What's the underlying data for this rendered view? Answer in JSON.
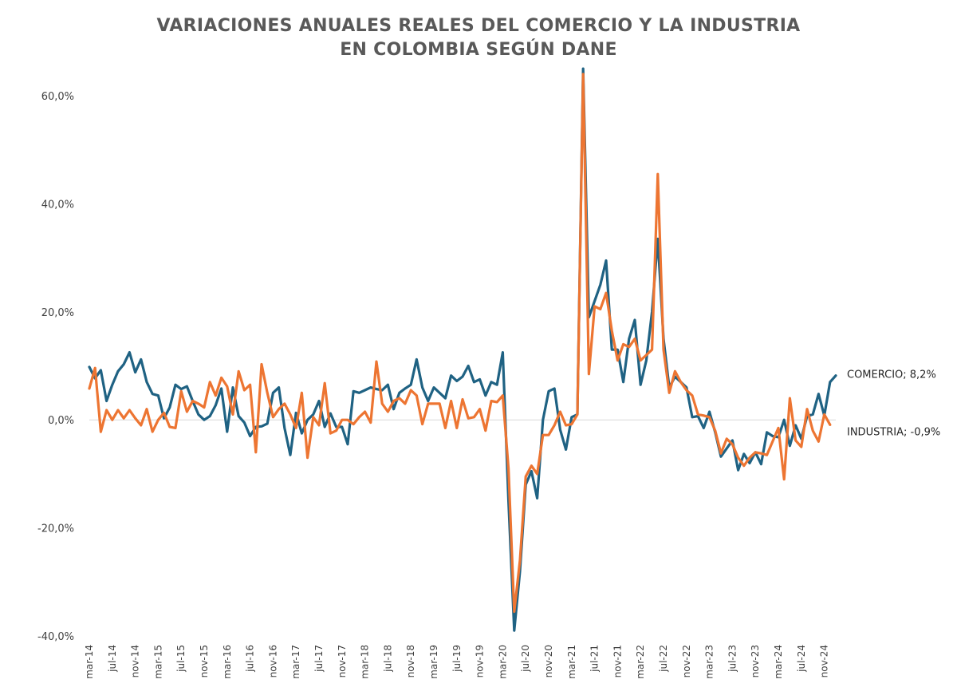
{
  "chart_data": {
    "type": "line",
    "title_lines": [
      "VARIACIONES ANUALES REALES DEL COMERCIO Y LA INDUSTRIA",
      "EN COLOMBIA SEGÚN DANE"
    ],
    "xlabel": "",
    "ylabel": "",
    "ylim": [
      -40,
      60
    ],
    "y_ticks": [
      "60,0%",
      "40,0%",
      "20,0%",
      "0,0%",
      "-20,0%",
      "-40,0%"
    ],
    "x_tick_labels": [
      "mar-14",
      "jul-14",
      "nov-14",
      "mar-15",
      "jul-15",
      "nov-15",
      "mar-16",
      "jul-16",
      "nov-16",
      "mar-17",
      "jul-17",
      "nov-17",
      "mar-18",
      "jul-18",
      "nov-18",
      "mar-19",
      "jul-19",
      "nov-19",
      "mar-20",
      "jul-20",
      "nov-20",
      "mar-21",
      "jul-21",
      "nov-21",
      "mar-22",
      "jul-22",
      "nov-22",
      "mar-23",
      "jul-23",
      "nov-23",
      "mar-24",
      "jul-24",
      "nov-24"
    ],
    "x_start": "mar-14",
    "x_end": "nov-24",
    "grid": "zero line only",
    "legend": "end-of-line labels (right)",
    "series": [
      {
        "name": "COMERCIO",
        "color": "#1f6283",
        "end_label": "COMERCIO; 8,2%",
        "values": [
          9.8,
          7.7,
          9.2,
          3.5,
          6.5,
          9.0,
          10.3,
          12.5,
          8.8,
          11.2,
          7.0,
          4.8,
          4.5,
          0.3,
          2.3,
          6.5,
          5.7,
          6.2,
          3.5,
          1.0,
          0.0,
          0.7,
          2.7,
          5.8,
          -2.2,
          6.0,
          0.7,
          -0.5,
          -3.0,
          -1.3,
          -1.2,
          -0.7,
          5.0,
          6.0,
          -1.5,
          -6.5,
          1.3,
          -2.5,
          0.0,
          1.0,
          3.5,
          -1.3,
          1.2,
          -1.3,
          -1.3,
          -4.5,
          5.3,
          5.0,
          5.5,
          6.0,
          5.7,
          5.5,
          6.5,
          2.0,
          5.0,
          5.8,
          6.5,
          11.2,
          6.0,
          3.5,
          6.0,
          5.0,
          4.0,
          8.2,
          7.2,
          8.0,
          10.0,
          7.0,
          7.5,
          4.5,
          7.0,
          6.5,
          12.5,
          -15.0,
          -39.0,
          -28.0,
          -12.0,
          -9.5,
          -14.5,
          0.0,
          5.3,
          5.8,
          -1.8,
          -5.5,
          0.5,
          1.0,
          65.0,
          19.0,
          22.0,
          25.0,
          29.5,
          13.0,
          13.0,
          7.0,
          15.0,
          18.5,
          6.5,
          11.0,
          20.0,
          33.5,
          15.0,
          6.0,
          8.0,
          7.0,
          6.0,
          0.5,
          0.7,
          -1.5,
          1.5,
          -2.3,
          -6.8,
          -5.3,
          -3.8,
          -9.3,
          -6.3,
          -8.0,
          -6.0,
          -8.2,
          -2.3,
          -3.0,
          -3.2,
          0.0,
          -4.8,
          -1.0,
          -3.5,
          0.7,
          1.0,
          4.8,
          0.8,
          7.0,
          8.2
        ]
      },
      {
        "name": "INDUSTRIA",
        "color": "#ed7532",
        "end_label": "INDUSTRIA; -0,9%",
        "values": [
          5.8,
          9.6,
          -2.2,
          1.8,
          0.0,
          1.8,
          0.3,
          1.8,
          0.3,
          -1.0,
          2.0,
          -2.2,
          0.0,
          1.3,
          -1.3,
          -1.5,
          5.3,
          1.5,
          3.5,
          3.0,
          2.3,
          7.0,
          4.5,
          7.8,
          6.2,
          1.0,
          9.0,
          5.5,
          6.5,
          -6.0,
          10.3,
          5.0,
          0.5,
          2.0,
          3.0,
          1.0,
          -1.5,
          5.0,
          -7.0,
          0.5,
          -1.0,
          6.8,
          -2.5,
          -2.0,
          0.0,
          0.0,
          -0.8,
          0.5,
          1.5,
          -0.5,
          10.8,
          3.0,
          1.5,
          3.5,
          4.0,
          3.0,
          5.5,
          4.5,
          -0.8,
          3.0,
          3.0,
          3.0,
          -1.5,
          3.5,
          -1.5,
          3.8,
          0.3,
          0.5,
          2.0,
          -2.0,
          3.5,
          3.3,
          4.5,
          -9.0,
          -35.5,
          -26.0,
          -10.5,
          -8.5,
          -10.0,
          -2.8,
          -2.8,
          -1.0,
          1.5,
          -1.0,
          -0.8,
          1.0,
          64.0,
          8.5,
          21.0,
          20.5,
          23.5,
          16.5,
          11.0,
          14.0,
          13.5,
          15.0,
          11.0,
          12.0,
          13.0,
          45.5,
          13.0,
          5.0,
          9.0,
          7.0,
          5.5,
          4.5,
          1.0,
          0.8,
          0.5,
          -2.0,
          -6.2,
          -3.5,
          -4.5,
          -7.0,
          -8.5,
          -7.0,
          -6.0,
          -6.2,
          -6.5,
          -4.0,
          -1.5,
          -11.0,
          4.0,
          -3.8,
          -5.0,
          2.0,
          -2.0,
          -4.0,
          1.0,
          -0.9
        ]
      }
    ]
  }
}
